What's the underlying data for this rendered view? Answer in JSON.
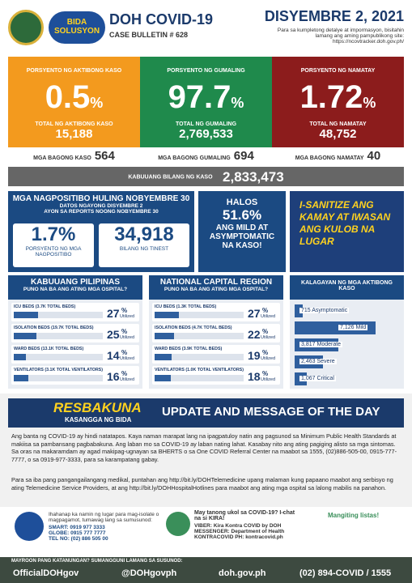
{
  "header": {
    "logo_text": "BIDA SOLUSYON",
    "title": "DOH COVID-19",
    "bulletin": "CASE BULLETIN # 628",
    "date": "DISYEMBRE 2, 2021",
    "note": "Para sa kumpletong detalye at impormasyon, bisitahin lamang ang aming pampublikong site:",
    "url": "https://ncovtracker.doh.gov.ph/"
  },
  "cards": [
    {
      "label": "PORSYENTO NG AKTIBONG KASO",
      "percent": "0.5",
      "unit": "%",
      "total_label": "TOTAL NG AKTIBONG KASO",
      "total": "15,188",
      "new_label": "MGA BAGONG KASO",
      "new": "564"
    },
    {
      "label": "PORSYENTO NG GUMALING",
      "percent": "97.7",
      "unit": "%",
      "total_label": "TOTAL NG GUMALING",
      "total": "2,769,533",
      "new_label": "MGA BAGONG GUMALING",
      "new": "694"
    },
    {
      "label": "PORSYENTO NG NAMATAY",
      "percent": "1.72",
      "unit": "%",
      "total_label": "TOTAL NG NAMATAY",
      "total": "48,752",
      "new_label": "MGA BAGONG NAMATAY",
      "new": "40"
    }
  ],
  "total": {
    "label": "KABUUANG BILANG NG KASO",
    "value": "2,833,473"
  },
  "testing": {
    "title": "MGA NAGPOSITIBO HULING NOBYEMBRE 30",
    "sub1": "DATOS NGAYONG DISYEMBRE 2",
    "sub2": "AYON SA REPORTS NOONG NOBYEMBRE 30",
    "positivity": "1.7%",
    "positivity_label": "PORSYENTO NG MGA NAGPOSITIBO",
    "tested": "34,918",
    "tested_label": "BILANG NG TINEST"
  },
  "mild": {
    "pre": "HALOS",
    "value": "51.6%",
    "text": "ANG MILD AT ASYMPTOMATIC NA KASO!"
  },
  "banner": {
    "text": "I-SANITIZE ANG KAMAY AT IWASAN ANG KULOB NA LUGAR"
  },
  "hospital": [
    {
      "title": "KABUUANG PILIPINAS",
      "subtitle": "PUNO NA BA ANG ATING MGA OSPITAL?",
      "unit": "%",
      "utilized": "Utilized",
      "rows": [
        {
          "label": "ICU BEDS (3.7K TOTAL BEDS)",
          "value": 27
        },
        {
          "label": "ISOLATION BEDS (19.7K TOTAL BEDS)",
          "value": 25
        },
        {
          "label": "WARD BEDS (13.1K TOTAL BEDS)",
          "value": 14
        },
        {
          "label": "VENTILATORS (3.1K TOTAL VENTILATORS)",
          "value": 16
        }
      ]
    },
    {
      "title": "NATIONAL CAPITAL REGION",
      "subtitle": "PUNO NA BA ANG ATING MGA OSPITAL?",
      "unit": "%",
      "utilized": "Utilized",
      "rows": [
        {
          "label": "ICU BEDS (1.3K TOTAL BEDS)",
          "value": 27
        },
        {
          "label": "ISOLATION BEDS (4.7K TOTAL BEDS)",
          "value": 22
        },
        {
          "label": "WARD BEDS (3.9K TOTAL BEDS)",
          "value": 19
        },
        {
          "label": "VENTILATORS (1.0K TOTAL VENTILATORS)",
          "value": 18
        }
      ]
    }
  ],
  "severity": {
    "title": "KALAGAYAN NG MGA AKTIBONG KASO",
    "categories": [
      "Asymptomatic",
      "Mild",
      "Moderate",
      "Severe",
      "Critical"
    ],
    "values": [
      715,
      7126,
      3817,
      2463,
      1067
    ],
    "value_labels": [
      "715",
      "7,126",
      "3,817",
      "2,463",
      "1,067"
    ]
  },
  "update": {
    "logo": "RESBAKUNA",
    "logo_sub": "KASANGGA NG BIDA",
    "title": "UPDATE AND MESSAGE OF THE DAY",
    "p1": "Ang banta ng COVID-19 ay hindi natatapos. Kaya naman marapat lang na ipagpatuloy natin ang pagsunod sa Minimum Public Health Standards at makiisa sa pambansang pagbabakuna. Ang laban mo sa COVID-19 ay laban nating lahat. Kasabay nito ang ating pagiging alisto sa mga sintomas. Sa oras na makaramdam ay agad makipag-ugnayan sa BHERTS o sa One COVID Referral Center na maabot sa 1555, (02)886-505-00, 0915-777-7777, o sa 0919-977-3333, para sa karampatang gabay.",
    "p2": "Para sa iba pang pangangailangang medikal, puntahan ang http://bit.ly/DOHTelemedicine upang malaman kung papaano maabot ang serbisyo ng ating Telemedicine Service Providers, at ang http://bit.ly/DOHHospitalHotlines para maabot ang ating mga ospital sa lalong mabilis na panahon."
  },
  "contact": {
    "intro": "Ihahanap ka namin ng lugar para mag-isolate o magpagamot, tumawag lang sa sumusunod:",
    "lines": [
      "SMART: 0919 977 3333",
      "GLOBE: 0915 777 7777",
      "TEL NO: (02) 886 505 00"
    ],
    "kira_title": "May tanong ukol sa COVID-19? I-chat na si KIRA!",
    "kira_lines": [
      "VIBER: Kira Kontra COVID by DOH",
      "MESSENGER: Department of Health",
      "KONTRACOVID PH: kontracovid.ph"
    ],
    "extra": "Mangiting listas!"
  },
  "footer": {
    "prompt": "MAYROON PANG KATANUNGAN? SUMANGGUNI LAMANG SA SUSUNOD:",
    "facebook": "OfficialDOHgov",
    "twitter": "@DOHgovph",
    "web": "doh.gov.ph",
    "phone": "(02) 894-COVID / 1555"
  }
}
